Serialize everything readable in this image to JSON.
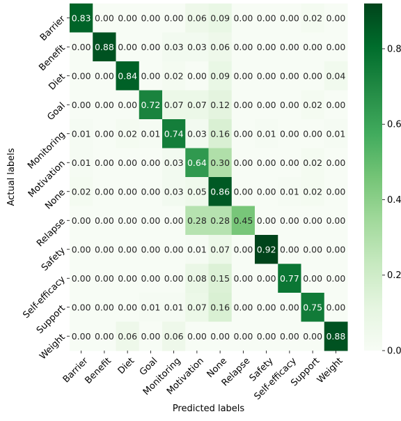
{
  "chart_data": {
    "type": "heatmap",
    "xlabel": "Predicted labels",
    "ylabel": "Actual labels",
    "x_categories": [
      "Barrier",
      "Benefit",
      "Diet",
      "Goal",
      "Monitoring",
      "Motivation",
      "None",
      "Relapse",
      "Safety",
      "Self-efficacy",
      "Support",
      "Weight"
    ],
    "y_categories": [
      "Barrier",
      "Benefit",
      "Diet",
      "Goal",
      "Monitoring",
      "Motivation",
      "None",
      "Relapse",
      "Safety",
      "Self-efficacy",
      "Support",
      "Weight"
    ],
    "values": [
      [
        0.83,
        0.0,
        0.0,
        0.0,
        0.0,
        0.06,
        0.09,
        0.0,
        0.0,
        0.0,
        0.02,
        0.0
      ],
      [
        0.0,
        0.88,
        0.0,
        0.0,
        0.03,
        0.03,
        0.06,
        0.0,
        0.0,
        0.0,
        0.0,
        0.0
      ],
      [
        0.0,
        0.0,
        0.84,
        0.0,
        0.02,
        0.0,
        0.09,
        0.0,
        0.0,
        0.0,
        0.0,
        0.04
      ],
      [
        0.0,
        0.0,
        0.0,
        0.72,
        0.07,
        0.07,
        0.12,
        0.0,
        0.0,
        0.0,
        0.02,
        0.0
      ],
      [
        0.01,
        0.0,
        0.02,
        0.01,
        0.74,
        0.03,
        0.16,
        0.0,
        0.01,
        0.0,
        0.0,
        0.01
      ],
      [
        0.01,
        0.0,
        0.0,
        0.0,
        0.03,
        0.64,
        0.3,
        0.0,
        0.0,
        0.0,
        0.02,
        0.0
      ],
      [
        0.02,
        0.0,
        0.0,
        0.0,
        0.03,
        0.05,
        0.86,
        0.0,
        0.0,
        0.01,
        0.02,
        0.0
      ],
      [
        0.0,
        0.0,
        0.0,
        0.0,
        0.0,
        0.28,
        0.28,
        0.45,
        0.0,
        0.0,
        0.0,
        0.0
      ],
      [
        0.0,
        0.0,
        0.0,
        0.0,
        0.0,
        0.01,
        0.07,
        0.0,
        0.92,
        0.0,
        0.0,
        0.0
      ],
      [
        0.0,
        0.0,
        0.0,
        0.0,
        0.0,
        0.08,
        0.15,
        0.0,
        0.0,
        0.77,
        0.0,
        0.0
      ],
      [
        0.0,
        0.0,
        0.0,
        0.01,
        0.01,
        0.07,
        0.16,
        0.0,
        0.0,
        0.0,
        0.75,
        0.0
      ],
      [
        0.0,
        0.0,
        0.06,
        0.0,
        0.06,
        0.0,
        0.0,
        0.0,
        0.0,
        0.0,
        0.0,
        0.88
      ]
    ],
    "colorscale": "Greens",
    "colorbar_range": [
      0,
      0.92
    ],
    "colorbar_ticks": [
      "0.0",
      "0.2",
      "0.4",
      "0.6",
      "0.8"
    ],
    "colorbar_tick_values": [
      0.0,
      0.2,
      0.4,
      0.6,
      0.8
    ],
    "grid": false,
    "colors": {
      "min": "#f7fcf5",
      "max": "#00441b",
      "text_dark": "#262626",
      "text_light": "#ffffff"
    }
  }
}
